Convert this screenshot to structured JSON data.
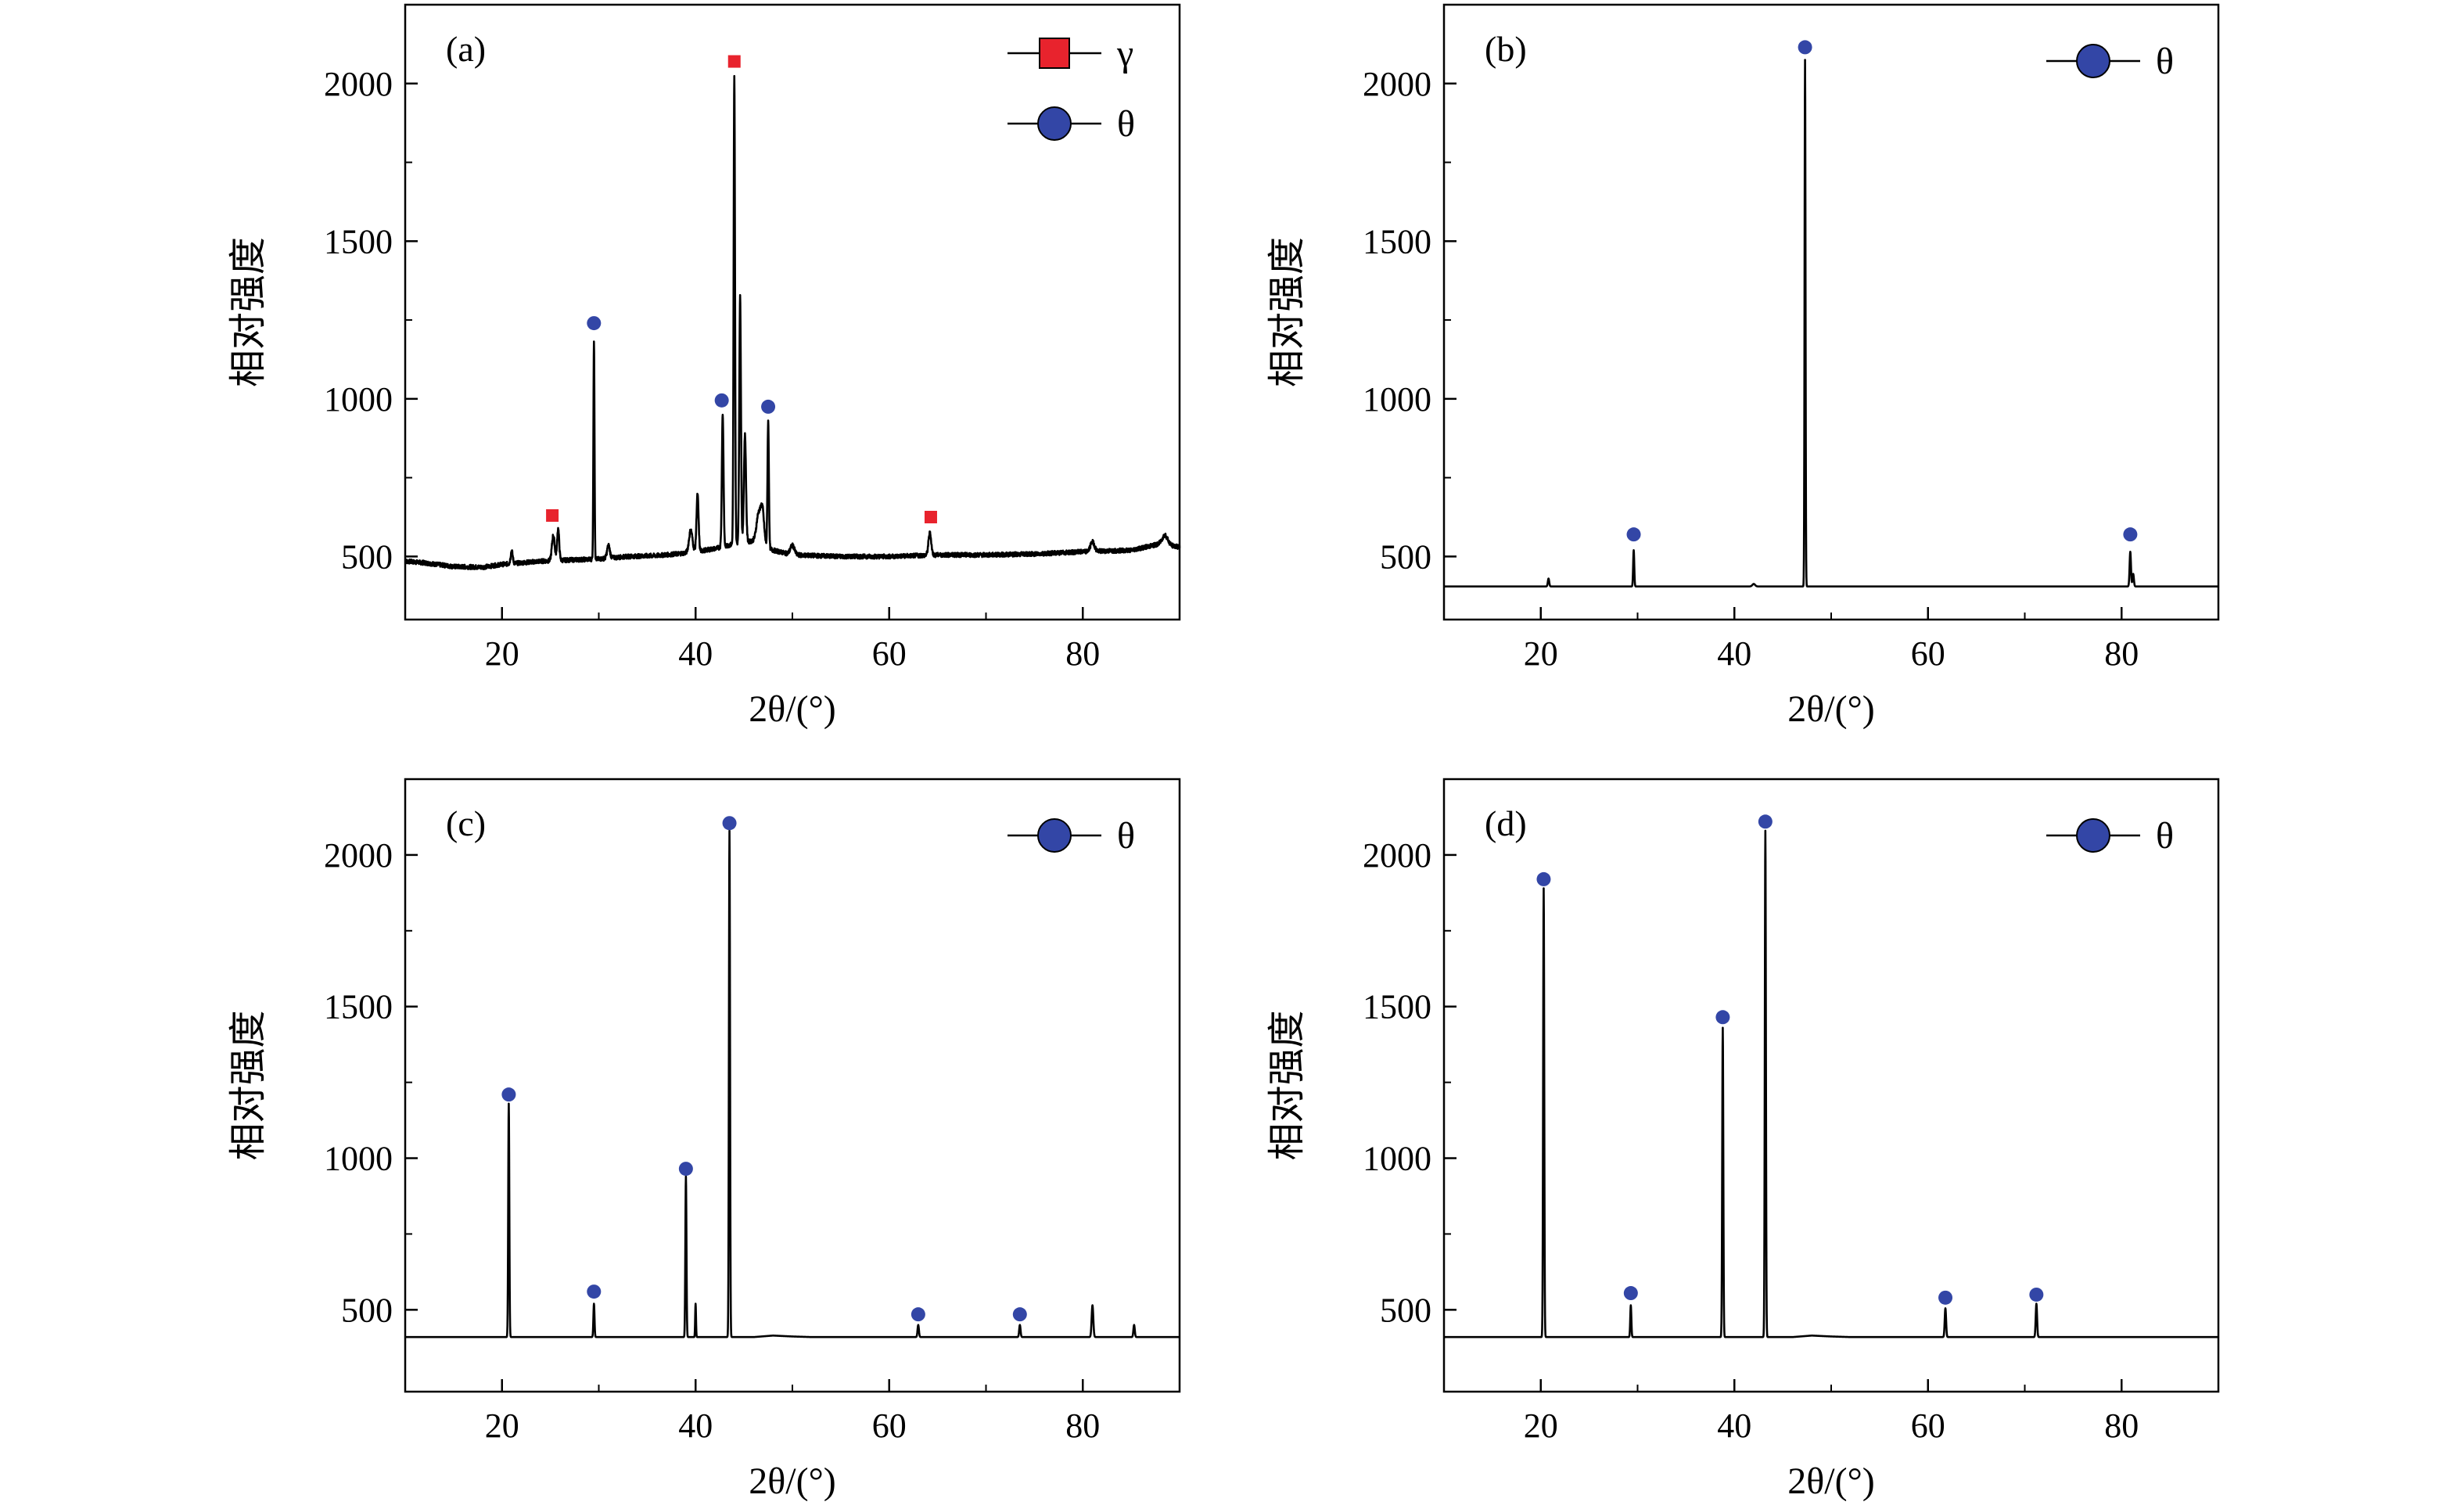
{
  "chart_data": [
    {
      "type": "line",
      "panel_label": "(a)",
      "xlabel": "2θ/(°)",
      "ylabel": "相对强度",
      "xlim": [
        10,
        90
      ],
      "ylim": [
        300,
        2250
      ],
      "xticks": [
        20,
        40,
        60,
        80
      ],
      "yticks": [
        500,
        1000,
        1500,
        2000
      ],
      "grid": false,
      "legend_position": "top-right",
      "baseline": [
        [
          10,
          485
        ],
        [
          12,
          480
        ],
        [
          15,
          468
        ],
        [
          18,
          466
        ],
        [
          20,
          475
        ],
        [
          22,
          480
        ],
        [
          24,
          485
        ],
        [
          26,
          488
        ],
        [
          28,
          490
        ],
        [
          30,
          492
        ],
        [
          33,
          500
        ],
        [
          36,
          503
        ],
        [
          38,
          508
        ],
        [
          40,
          515
        ],
        [
          42,
          525
        ],
        [
          44,
          540
        ],
        [
          46,
          550
        ],
        [
          48,
          520
        ],
        [
          50,
          505
        ],
        [
          55,
          500
        ],
        [
          60,
          500
        ],
        [
          65,
          505
        ],
        [
          70,
          505
        ],
        [
          75,
          508
        ],
        [
          80,
          515
        ],
        [
          85,
          520
        ],
        [
          88,
          540
        ],
        [
          90,
          530
        ]
      ],
      "peaks": [
        [
          21,
          40,
          0.15
        ],
        [
          25.3,
          80,
          0.2
        ],
        [
          25.8,
          100,
          0.15
        ],
        [
          29.5,
          690,
          0.08
        ],
        [
          31,
          40,
          0.2
        ],
        [
          39.5,
          70,
          0.25
        ],
        [
          40.2,
          180,
          0.15
        ],
        [
          42.8,
          420,
          0.12
        ],
        [
          44,
          1480,
          0.1
        ],
        [
          44.6,
          780,
          0.12
        ],
        [
          45.1,
          340,
          0.15
        ],
        [
          46.5,
          90,
          0.3
        ],
        [
          46.9,
          110,
          0.25
        ],
        [
          47.5,
          400,
          0.1
        ],
        [
          50,
          30,
          0.3
        ],
        [
          64.2,
          70,
          0.2
        ],
        [
          81,
          30,
          0.3
        ],
        [
          88.5,
          30,
          0.4
        ]
      ],
      "series": [
        {
          "name": "γ",
          "marker": "square",
          "color": "#e8232d",
          "points": [
            [
              25.2,
              630
            ],
            [
              44.0,
              2070
            ],
            [
              64.3,
              625
            ]
          ]
        },
        {
          "name": "θ",
          "marker": "circle",
          "color": "#3346a6",
          "points": [
            [
              29.5,
              1240
            ],
            [
              42.7,
              995
            ],
            [
              47.5,
              975
            ]
          ]
        }
      ]
    },
    {
      "type": "line",
      "panel_label": "(b)",
      "xlabel": "2θ/(°)",
      "ylabel": "相对强度",
      "xlim": [
        10,
        90
      ],
      "ylim": [
        300,
        2250
      ],
      "xticks": [
        20,
        40,
        60,
        80
      ],
      "yticks": [
        500,
        1000,
        1500,
        2000
      ],
      "grid": false,
      "legend_position": "top-right",
      "baseline": [
        [
          10,
          405
        ],
        [
          90,
          405
        ]
      ],
      "peaks": [
        [
          20.8,
          25,
          0.1
        ],
        [
          29.6,
          115,
          0.08
        ],
        [
          42,
          8,
          0.2
        ],
        [
          47.3,
          1670,
          0.07
        ],
        [
          80.9,
          110,
          0.1
        ],
        [
          81.2,
          40,
          0.1
        ]
      ],
      "series": [
        {
          "name": "θ",
          "marker": "circle",
          "color": "#3346a6",
          "points": [
            [
              29.6,
              570
            ],
            [
              47.3,
              2115
            ],
            [
              80.9,
              570
            ]
          ]
        }
      ]
    },
    {
      "type": "line",
      "panel_label": "(c)",
      "xlabel": "2θ/(°)",
      "ylabel": "相对强度",
      "xlim": [
        10,
        90
      ],
      "ylim": [
        230,
        2250
      ],
      "xticks": [
        20,
        40,
        60,
        80
      ],
      "yticks": [
        500,
        1000,
        1500,
        2000
      ],
      "grid": false,
      "legend_position": "top-right",
      "baseline": [
        [
          10,
          410
        ],
        [
          46,
          410
        ],
        [
          48,
          415
        ],
        [
          50,
          412
        ],
        [
          52,
          410
        ],
        [
          90,
          410
        ]
      ],
      "peaks": [
        [
          20.7,
          770,
          0.08
        ],
        [
          29.5,
          110,
          0.08
        ],
        [
          39,
          530,
          0.08
        ],
        [
          40,
          110,
          0.06
        ],
        [
          43.5,
          1670,
          0.08
        ],
        [
          63,
          40,
          0.1
        ],
        [
          73.5,
          40,
          0.1
        ],
        [
          81,
          105,
          0.12
        ],
        [
          85.3,
          40,
          0.1
        ]
      ],
      "series": [
        {
          "name": "θ",
          "marker": "circle",
          "color": "#3346a6",
          "points": [
            [
              20.7,
              1210
            ],
            [
              29.5,
              560
            ],
            [
              39.0,
              965
            ],
            [
              43.5,
              2105
            ],
            [
              63.0,
              485
            ],
            [
              73.5,
              485
            ]
          ]
        }
      ]
    },
    {
      "type": "line",
      "panel_label": "(d)",
      "xlabel": "2θ/(°)",
      "ylabel": "相对强度",
      "xlim": [
        10,
        90
      ],
      "ylim": [
        230,
        2250
      ],
      "xticks": [
        20,
        40,
        60,
        80
      ],
      "yticks": [
        500,
        1000,
        1500,
        2000
      ],
      "grid": false,
      "legend_position": "top-right",
      "baseline": [
        [
          10,
          410
        ],
        [
          46,
          410
        ],
        [
          48,
          415
        ],
        [
          50,
          412
        ],
        [
          52,
          410
        ],
        [
          90,
          410
        ]
      ],
      "peaks": [
        [
          20.3,
          1480,
          0.08
        ],
        [
          29.3,
          105,
          0.08
        ],
        [
          38.8,
          1020,
          0.08
        ],
        [
          43.2,
          1670,
          0.08
        ],
        [
          61.8,
          95,
          0.1
        ],
        [
          71.2,
          110,
          0.1
        ]
      ],
      "series": [
        {
          "name": "θ",
          "marker": "circle",
          "color": "#3346a6",
          "points": [
            [
              20.3,
              1920
            ],
            [
              29.3,
              555
            ],
            [
              38.8,
              1465
            ],
            [
              43.2,
              2110
            ],
            [
              61.8,
              540
            ],
            [
              71.2,
              550
            ]
          ]
        }
      ]
    }
  ]
}
